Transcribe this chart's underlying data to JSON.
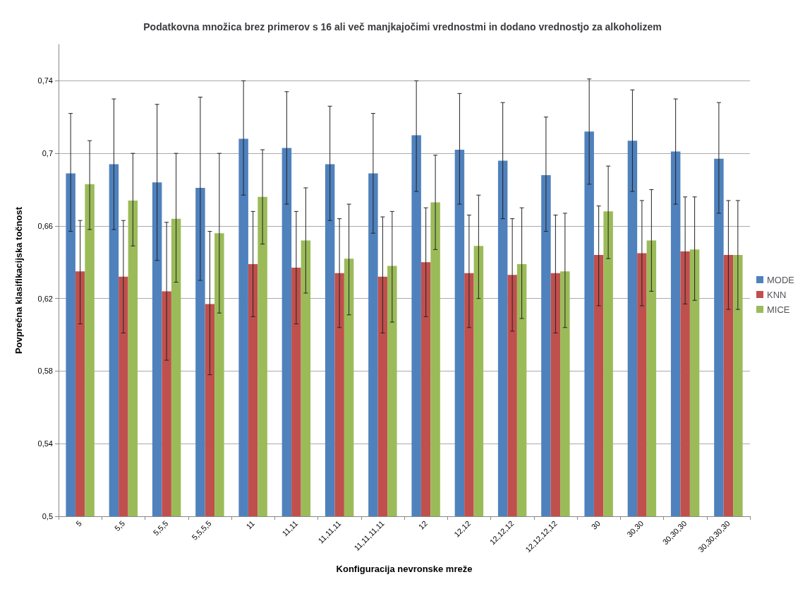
{
  "chart_data": {
    "type": "bar",
    "title": "Podatkovna množica brez primerov s 16 ali več manjkajočimi vrednostmi in dodano vrednostjo za alkoholizem",
    "xlabel": "Konfiguracija nevronske mreže",
    "ylabel": "Povprečna klasifikacijska točnost",
    "categories": [
      "5",
      "5,5",
      "5,5,5",
      "5,5,5,5",
      "11",
      "11,11",
      "11,11,11",
      "11,11,11,11",
      "12",
      "12,12",
      "12,12,12",
      "12,12,12,12",
      "30",
      "30,30",
      "30,30,30",
      "30,30,30,30"
    ],
    "series": [
      {
        "name": "MODE",
        "color": "#4f81bd",
        "values": [
          0.689,
          0.694,
          0.684,
          0.681,
          0.708,
          0.703,
          0.694,
          0.689,
          0.71,
          0.702,
          0.696,
          0.688,
          0.712,
          0.707,
          0.701,
          0.697
        ],
        "errors": [
          [
            0.657,
            0.722
          ],
          [
            0.658,
            0.73
          ],
          [
            0.641,
            0.727
          ],
          [
            0.63,
            0.731
          ],
          [
            0.677,
            0.74
          ],
          [
            0.672,
            0.734
          ],
          [
            0.663,
            0.726
          ],
          [
            0.656,
            0.722
          ],
          [
            0.679,
            0.74
          ],
          [
            0.672,
            0.733
          ],
          [
            0.664,
            0.728
          ],
          [
            0.657,
            0.72
          ],
          [
            0.683,
            0.741
          ],
          [
            0.679,
            0.735
          ],
          [
            0.672,
            0.73
          ],
          [
            0.667,
            0.728
          ]
        ]
      },
      {
        "name": "KNN",
        "color": "#c0504d",
        "values": [
          0.635,
          0.632,
          0.624,
          0.617,
          0.639,
          0.637,
          0.634,
          0.632,
          0.64,
          0.634,
          0.633,
          0.634,
          0.644,
          0.645,
          0.646,
          0.644
        ],
        "errors": [
          [
            0.606,
            0.663
          ],
          [
            0.601,
            0.663
          ],
          [
            0.586,
            0.662
          ],
          [
            0.578,
            0.657
          ],
          [
            0.61,
            0.668
          ],
          [
            0.606,
            0.668
          ],
          [
            0.604,
            0.664
          ],
          [
            0.601,
            0.665
          ],
          [
            0.61,
            0.67
          ],
          [
            0.604,
            0.666
          ],
          [
            0.602,
            0.664
          ],
          [
            0.601,
            0.666
          ],
          [
            0.616,
            0.671
          ],
          [
            0.616,
            0.674
          ],
          [
            0.617,
            0.676
          ],
          [
            0.614,
            0.674
          ]
        ]
      },
      {
        "name": "MICE",
        "color": "#9bbb59",
        "values": [
          0.683,
          0.674,
          0.664,
          0.656,
          0.676,
          0.652,
          0.642,
          0.638,
          0.673,
          0.649,
          0.639,
          0.635,
          0.668,
          0.652,
          0.647,
          0.644
        ],
        "errors": [
          [
            0.658,
            0.707
          ],
          [
            0.649,
            0.7
          ],
          [
            0.629,
            0.7
          ],
          [
            0.612,
            0.7
          ],
          [
            0.65,
            0.702
          ],
          [
            0.623,
            0.681
          ],
          [
            0.611,
            0.672
          ],
          [
            0.607,
            0.668
          ],
          [
            0.647,
            0.699
          ],
          [
            0.62,
            0.677
          ],
          [
            0.609,
            0.67
          ],
          [
            0.604,
            0.667
          ],
          [
            0.642,
            0.693
          ],
          [
            0.624,
            0.68
          ],
          [
            0.619,
            0.676
          ],
          [
            0.614,
            0.674
          ]
        ]
      }
    ],
    "ylim": [
      0.5,
      0.76
    ],
    "yticks": [
      {
        "value": 0.5,
        "label": "0,5"
      },
      {
        "value": 0.54,
        "label": "0,54"
      },
      {
        "value": 0.58,
        "label": "0,58"
      },
      {
        "value": 0.62,
        "label": "0,62"
      },
      {
        "value": 0.66,
        "label": "0,66"
      },
      {
        "value": 0.7,
        "label": "0,7"
      },
      {
        "value": 0.74,
        "label": "0,74"
      }
    ],
    "grid": "y",
    "legend": "right"
  }
}
